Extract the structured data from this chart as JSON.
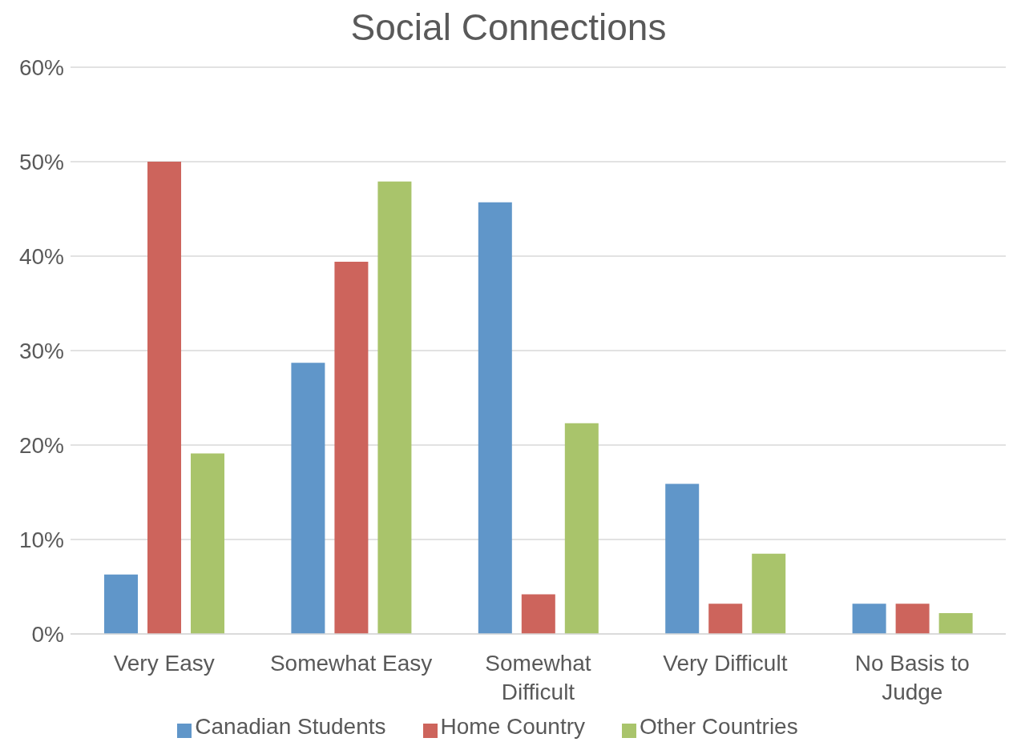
{
  "chart_data": {
    "type": "bar",
    "title": "Social Connections",
    "categories": [
      "Very Easy",
      "Somewhat Easy",
      "Somewhat Difficult",
      "Very Difficult",
      "No Basis to Judge"
    ],
    "series": [
      {
        "name": "Canadian Students",
        "color": "#6096c9",
        "values": [
          6.3,
          28.7,
          45.7,
          15.9,
          3.2
        ]
      },
      {
        "name": "Home Country",
        "color": "#cd645c",
        "values": [
          50.0,
          39.4,
          4.2,
          3.2,
          3.2
        ]
      },
      {
        "name": "Other Countries",
        "color": "#a9c46b",
        "values": [
          19.1,
          47.9,
          22.3,
          8.5,
          2.2
        ]
      }
    ],
    "ylim": [
      0,
      60
    ],
    "yticks": [
      {
        "value": 0,
        "label": "0%"
      },
      {
        "value": 10,
        "label": "10%"
      },
      {
        "value": 20,
        "label": "20%"
      },
      {
        "value": 30,
        "label": "30%"
      },
      {
        "value": 40,
        "label": "40%"
      },
      {
        "value": 50,
        "label": "50%"
      },
      {
        "value": 60,
        "label": "60%"
      }
    ],
    "grid": "y",
    "legend": "bottom"
  }
}
